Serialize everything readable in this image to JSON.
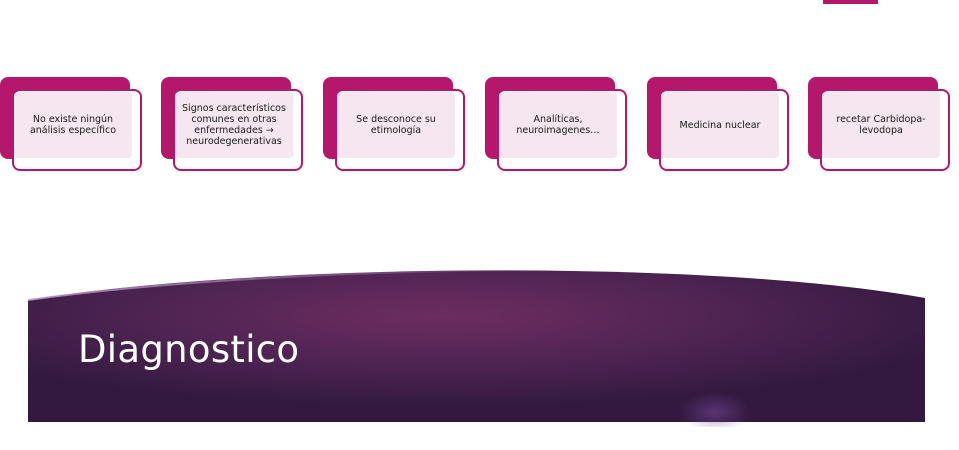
{
  "slide": {
    "title": "Diagnostico"
  },
  "process": {
    "steps": [
      {
        "label": "No existe ningún análisis específico"
      },
      {
        "label": "Signos característicos comunes en otras enfermedades → neurodegenerativas"
      },
      {
        "label": "Se desconoce su etimología"
      },
      {
        "label": "Analíticas, neuroimagenes…"
      },
      {
        "label": "Medicina nuclear"
      },
      {
        "label": "recetar Carbidopa-levodopa"
      }
    ]
  },
  "colors": {
    "accent": "#b5176c",
    "box_fill": "#f6e6ef",
    "banner_dark": "#3b1f4a",
    "banner_mid": "#6d2d60"
  }
}
